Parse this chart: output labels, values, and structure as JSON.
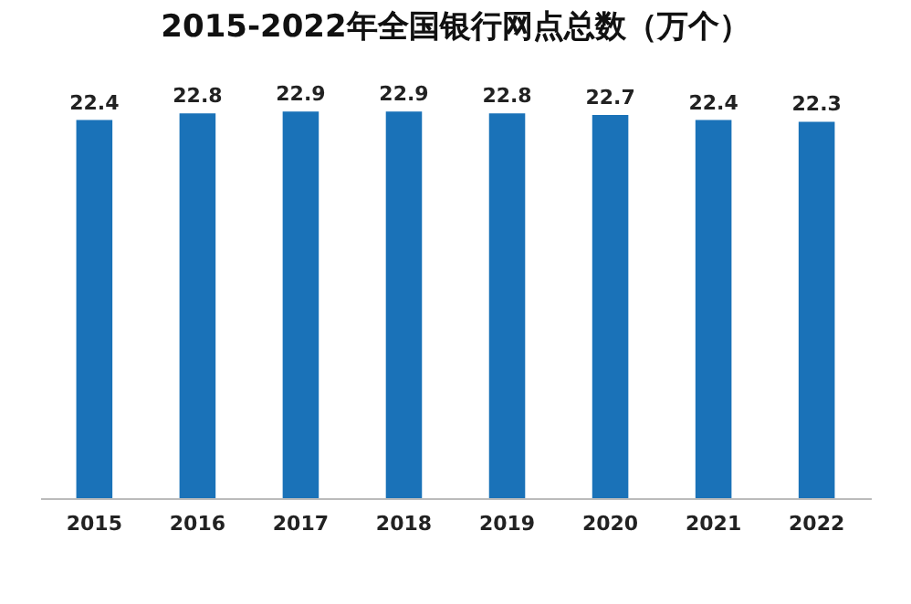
{
  "chart_data": {
    "type": "bar",
    "title": "2015-2022年全国银行网点总数（万个）",
    "categories": [
      "2015",
      "2016",
      "2017",
      "2018",
      "2019",
      "2020",
      "2021",
      "2022"
    ],
    "values": [
      22.4,
      22.8,
      22.9,
      22.9,
      22.8,
      22.7,
      22.4,
      22.3
    ],
    "color": "#1a72b8",
    "data_labels": true
  }
}
